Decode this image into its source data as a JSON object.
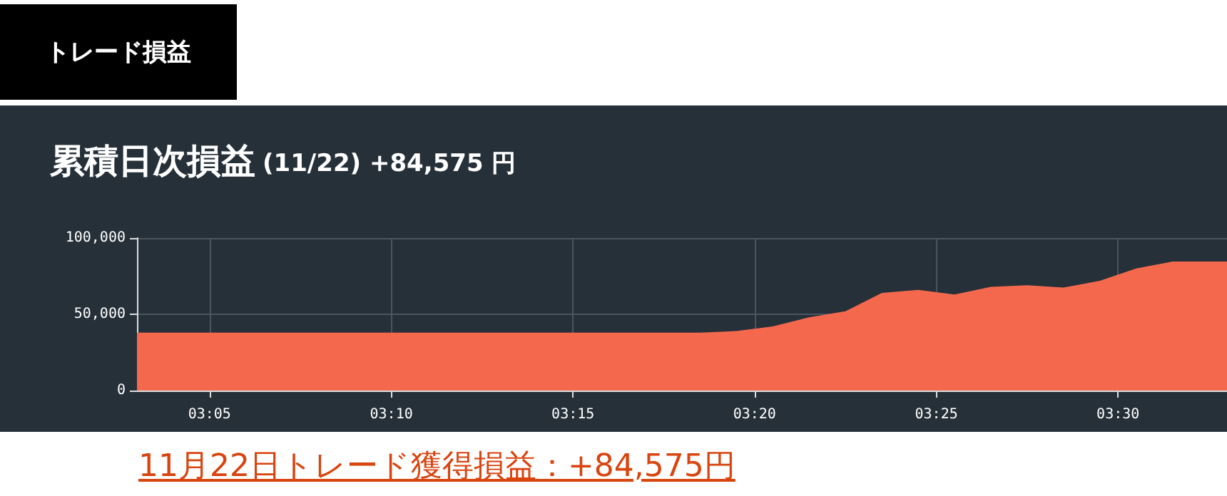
{
  "chart_data": {
    "type": "area",
    "title": "累積日次損益",
    "subtitle": "(11/22) +84,575 円",
    "annotations": [
      "トレード損益",
      "11月22日トレード獲得損益：+84,575円"
    ],
    "x": [
      3.05,
      3.3083,
      3.325,
      3.3417,
      3.3583,
      3.375,
      3.3917,
      3.4083,
      3.425,
      3.4417,
      3.4583,
      3.475,
      3.4917,
      3.5083,
      3.525,
      3.55
    ],
    "series": [
      {
        "color": "#f4694d",
        "values": [
          38000,
          38000,
          39000,
          42000,
          48000,
          52000,
          64000,
          66000,
          63000,
          68000,
          69000,
          67500,
          72000,
          80000,
          84575,
          84575
        ]
      }
    ],
    "xlim": [
      3.05,
      3.55
    ],
    "xticks": [
      {
        "value": 3.0833,
        "label": "03:05"
      },
      {
        "value": 3.1667,
        "label": "03:10"
      },
      {
        "value": 3.25,
        "label": "03:15"
      },
      {
        "value": 3.3333,
        "label": "03:20"
      },
      {
        "value": 3.4167,
        "label": "03:25"
      },
      {
        "value": 3.5,
        "label": "03:30"
      }
    ],
    "ylim": [
      0,
      100000
    ],
    "yticks": [
      {
        "value": 0,
        "label": "0"
      },
      {
        "value": 50000,
        "label": "50,000"
      },
      {
        "value": 100000,
        "label": "100,000"
      }
    ],
    "grid": true
  }
}
